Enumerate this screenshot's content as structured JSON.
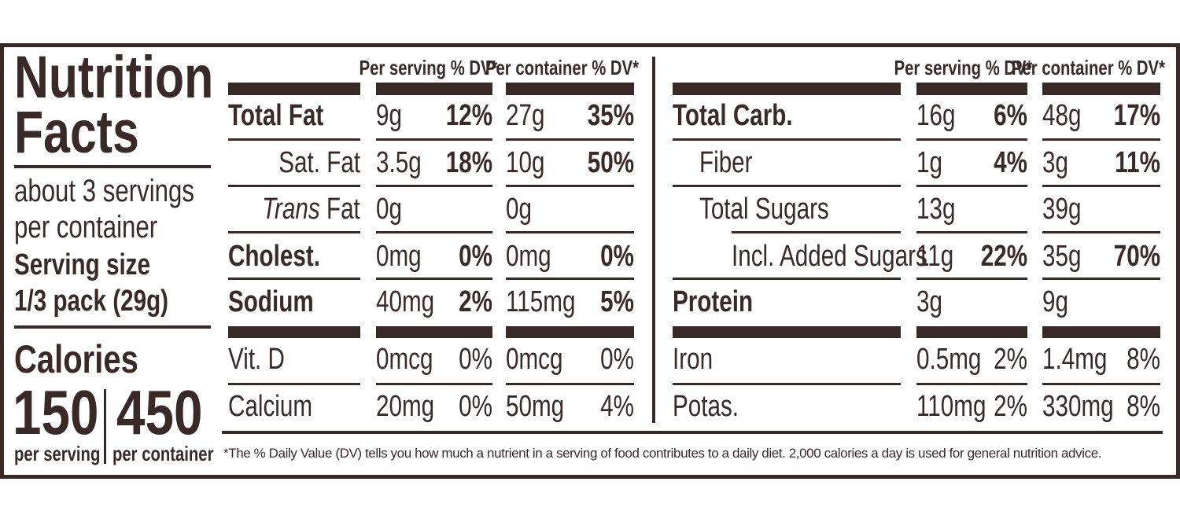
{
  "title": "Nutrition Facts",
  "servings": "about 3 servings per container",
  "serving_size_label": "Serving size",
  "serving_size": "1/3 pack (29g)",
  "calories": {
    "label": "Calories",
    "per_serving": "150",
    "per_container": "450",
    "per_serving_label": "per serving",
    "per_container_label": "per container"
  },
  "colors": {
    "ink": "#3a2a27"
  },
  "tables": [
    {
      "header_serving": "Per serving % DV*",
      "header_container": "Per container % DV*",
      "rows": [
        {
          "label": "Total Fat",
          "bold": true,
          "indent": 0,
          "s_amt": "9g",
          "s_dv": "12%",
          "c_amt": "27g",
          "c_dv": "35%",
          "dv_bold": true
        },
        {
          "label": "Sat. Fat",
          "indent": 1,
          "s_amt": "3.5g",
          "s_dv": "18%",
          "c_amt": "10g",
          "c_dv": "50%",
          "dv_bold": true
        },
        {
          "label_italic": "Trans",
          "label": " Fat",
          "indent": 1,
          "s_amt": "0g",
          "s_dv": "",
          "c_amt": "0g",
          "c_dv": ""
        },
        {
          "label": "Cholest.",
          "bold": true,
          "indent": 0,
          "s_amt": "0mg",
          "s_dv": "0%",
          "c_amt": "0mg",
          "c_dv": "0%",
          "dv_bold": true
        },
        {
          "label": "Sodium",
          "bold": true,
          "indent": 0,
          "s_amt": "40mg",
          "s_dv": "2%",
          "c_amt": "115mg",
          "c_dv": "5%",
          "dv_bold": true
        },
        {
          "label": "Vit. D",
          "indent": 0,
          "s_amt": "0mcg",
          "s_dv": "0%",
          "c_amt": "0mcg",
          "c_dv": "0%"
        },
        {
          "label": "Calcium",
          "indent": 0,
          "s_amt": "20mg",
          "s_dv": "0%",
          "c_amt": "50mg",
          "c_dv": "4%"
        }
      ]
    },
    {
      "header_serving": "Per serving % DV*",
      "header_container": "Per container % DV*",
      "rows": [
        {
          "label": "Total Carb.",
          "bold": true,
          "indent": 0,
          "s_amt": "16g",
          "s_dv": "6%",
          "c_amt": "48g",
          "c_dv": "17%",
          "dv_bold": true
        },
        {
          "label": "Fiber",
          "indent": 1,
          "s_amt": "1g",
          "s_dv": "4%",
          "c_amt": "3g",
          "c_dv": "11%",
          "dv_bold": true
        },
        {
          "label": "Total Sugars",
          "indent": 1,
          "s_amt": "13g",
          "s_dv": "",
          "c_amt": "39g",
          "c_dv": ""
        },
        {
          "label": "Incl. Added Sugars",
          "indent": 2,
          "s_amt": "11g",
          "s_dv": "22%",
          "c_amt": "35g",
          "c_dv": "70%",
          "dv_bold": true
        },
        {
          "label": "Protein",
          "bold": true,
          "indent": 0,
          "s_amt": "3g",
          "s_dv": "",
          "c_amt": "9g",
          "c_dv": ""
        },
        {
          "label": "Iron",
          "indent": 0,
          "s_amt": "0.5mg",
          "s_dv": "2%",
          "c_amt": "1.4mg",
          "c_dv": "8%"
        },
        {
          "label": "Potas.",
          "indent": 0,
          "s_amt": "110mg",
          "s_dv": "2%",
          "c_amt": "330mg",
          "c_dv": "8%"
        }
      ]
    }
  ],
  "footnote": "*The % Daily Value (DV) tells you how much a nutrient in a serving of food contributes to a daily diet. 2,000 calories a day is used for general nutrition advice."
}
